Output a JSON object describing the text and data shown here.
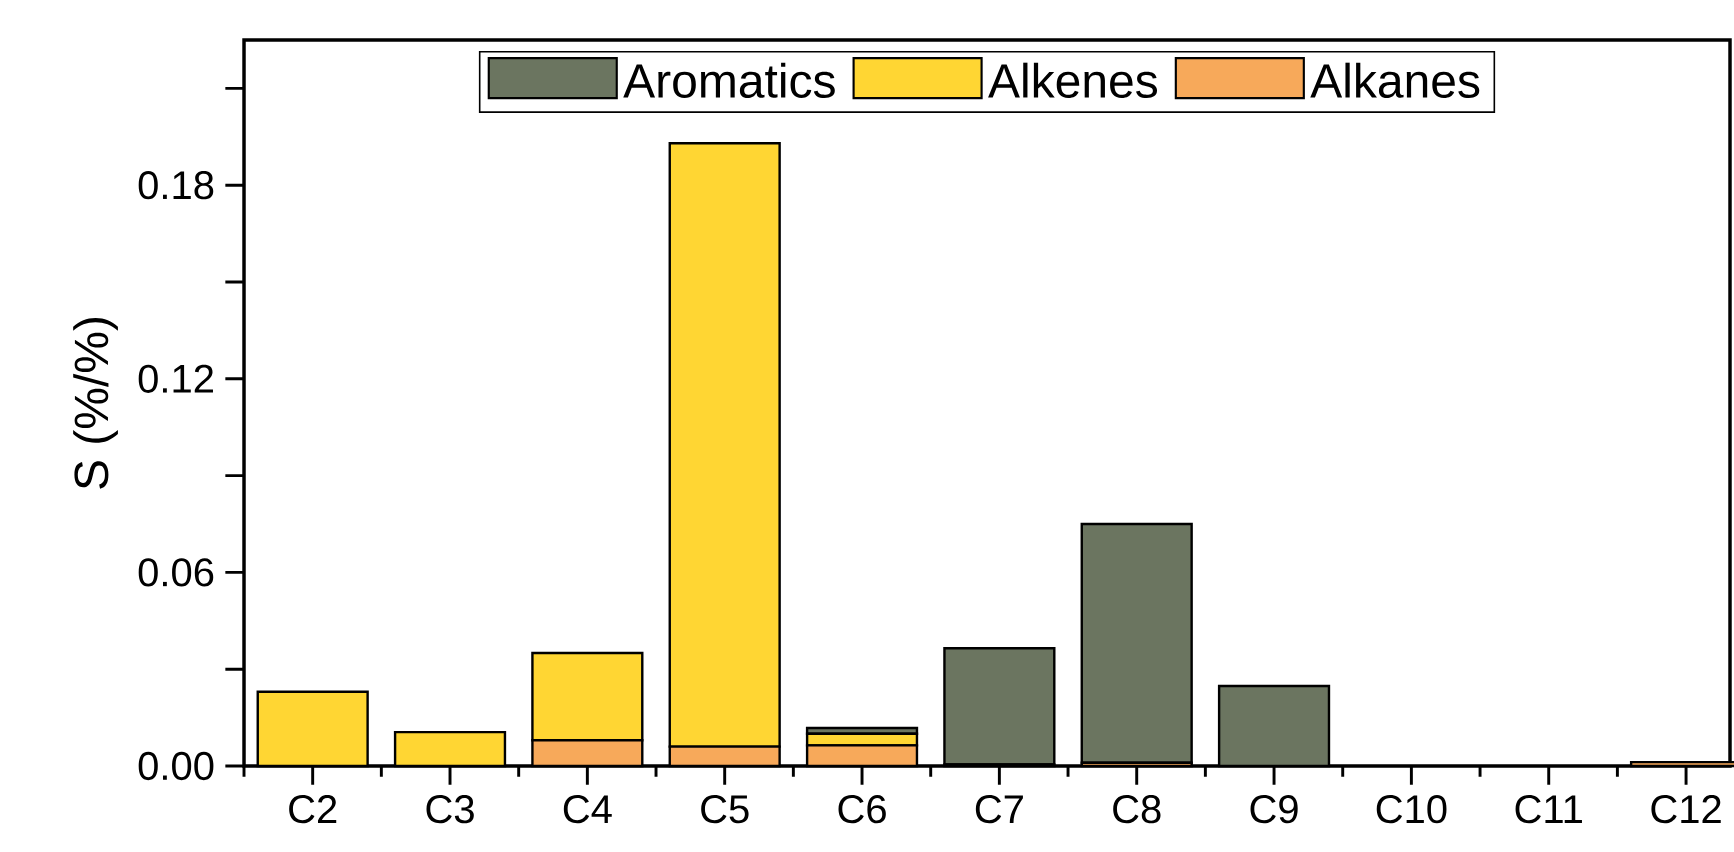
{
  "chart_data": {
    "type": "bar",
    "stacked": true,
    "ylabel": "S (%/%)",
    "categories": [
      "C2",
      "C3",
      "C4",
      "C5",
      "C6",
      "C7",
      "C8",
      "C9",
      "C10",
      "C11",
      "C12"
    ],
    "series": [
      {
        "name": "Alkanes",
        "color": "#f7a95a",
        "values": [
          0,
          0,
          0.008,
          0.006,
          0.0064,
          0.0005,
          0.001,
          0,
          0,
          0,
          0.0012
        ]
      },
      {
        "name": "Alkenes",
        "color": "#ffd633",
        "values": [
          0.023,
          0.0105,
          0.027,
          0.187,
          0.0036,
          0,
          0,
          0,
          0,
          0,
          0
        ]
      },
      {
        "name": "Aromatics",
        "color": "#6b7560",
        "values": [
          0,
          0,
          0,
          0,
          0.0018,
          0.036,
          0.074,
          0.0248,
          0,
          0,
          0
        ]
      }
    ],
    "ylim": [
      0,
      0.225
    ],
    "yticks": [
      {
        "value": 0,
        "label": "0.00"
      },
      {
        "value": 0.03,
        "label": null
      },
      0.06,
      {
        "value": 0.09,
        "label": null
      },
      0.12,
      {
        "value": 0.15,
        "label": null
      },
      0.18,
      {
        "value": 0.21,
        "label": null
      }
    ],
    "legend": "top",
    "grid": false
  }
}
